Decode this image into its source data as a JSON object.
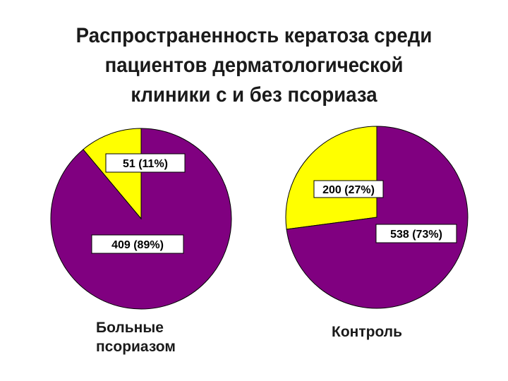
{
  "title_lines": [
    "Распространенность кератоза среди",
    "пациентов дерматологической",
    "клиники с и без псориаза"
  ],
  "chart_data": [
    {
      "type": "pie",
      "caption_lines": [
        "Больные",
        "псориазом"
      ],
      "slices": [
        {
          "value": 51,
          "label": "51 (11%)",
          "color": "#ffff00"
        },
        {
          "value": 409,
          "label": "409 (89%)",
          "color": "#800080"
        }
      ]
    },
    {
      "type": "pie",
      "caption_lines": [
        "Контроль"
      ],
      "slices": [
        {
          "value": 200,
          "label": "200 (27%)",
          "color": "#ffff00"
        },
        {
          "value": 538,
          "label": "538 (73%)",
          "color": "#800080"
        }
      ]
    }
  ]
}
